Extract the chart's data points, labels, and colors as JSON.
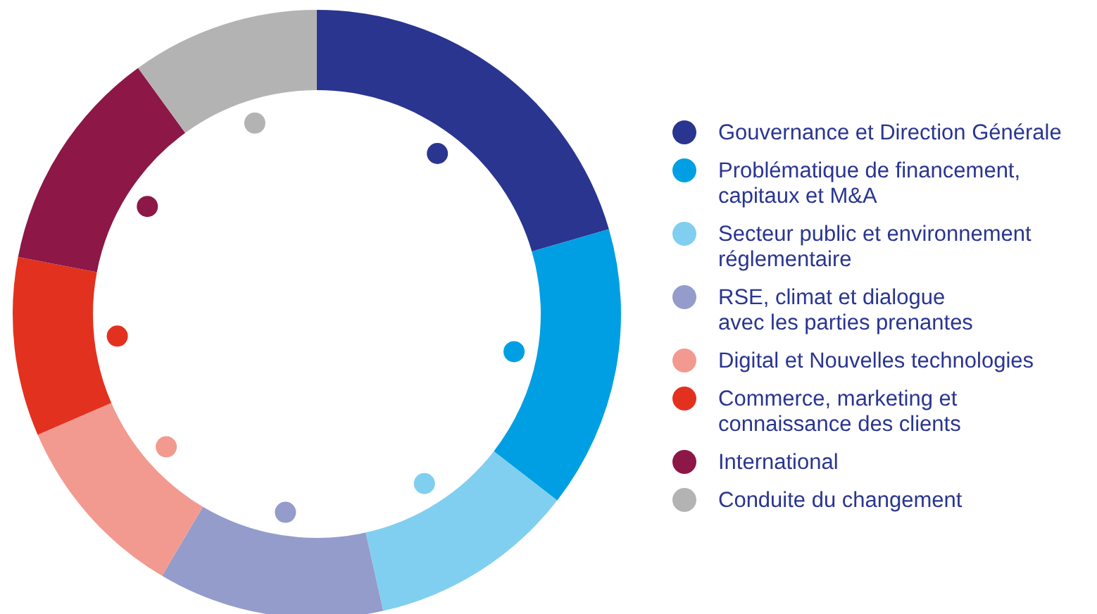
{
  "chart_data": {
    "type": "donut",
    "categories": [
      "Gouvernance et Direction Générale",
      "Problématique de financement,\ncapitaux et M&A",
      "Secteur public et environnement\nréglementaire",
      "RSE, climat et dialogue\navec les parties prenantes",
      "Digital et Nouvelles technologies",
      "Commerce, marketing et\nconnaissance des clients",
      "International",
      "Conduite du changement"
    ],
    "values": [
      20.5,
      15,
      11,
      12,
      10,
      9.5,
      12,
      10
    ],
    "colors": [
      "#2a3590",
      "#009fe3",
      "#80cff0",
      "#949ccb",
      "#f29a8f",
      "#e3311f",
      "#8d1746",
      "#b3b3b3"
    ],
    "legend": "right"
  }
}
